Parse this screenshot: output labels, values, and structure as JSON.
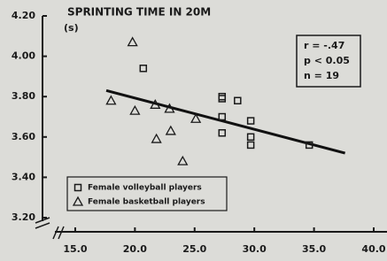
{
  "chart_data": {
    "type": "scatter",
    "title": "SPRINTING TIME IN 20M",
    "y_label": "(s)",
    "annotations": [
      "r = -.47",
      "p < 0.05",
      "n = 19"
    ],
    "xlim": [
      12,
      40
    ],
    "ylim": [
      3.1,
      4.2
    ],
    "xticks": [
      {
        "value": 15,
        "label": "15.0"
      },
      {
        "value": 20,
        "label": "20.0"
      },
      {
        "value": 25,
        "label": "25.0"
      },
      {
        "value": 30,
        "label": "30.0"
      },
      {
        "value": 35,
        "label": "35.0"
      },
      {
        "value": 40,
        "label": "40.0"
      }
    ],
    "yticks": [
      {
        "value": 3.2,
        "label": "3.20"
      },
      {
        "value": 3.4,
        "label": "3.40"
      },
      {
        "value": 3.6,
        "label": "3.60"
      },
      {
        "value": 3.8,
        "label": "3.80"
      },
      {
        "value": 4.0,
        "label": "4.00"
      },
      {
        "value": 4.2,
        "label": "4.20"
      }
    ],
    "series": [
      {
        "name": "Female volleyball players",
        "color": "#1a1a1a",
        "marker": "square",
        "x": [
          20.7,
          27.3,
          27.3,
          28.6,
          27.3,
          27.3,
          29.7,
          29.7,
          29.7,
          34.6
        ],
        "values": [
          3.94,
          3.8,
          3.79,
          3.78,
          3.7,
          3.62,
          3.68,
          3.6,
          3.56,
          3.56
        ]
      },
      {
        "name": "Female basketball players",
        "color": "#1a1a1a",
        "marker": "triangle",
        "x": [
          19.8,
          18.0,
          20.0,
          21.7,
          21.8,
          22.9,
          23.0,
          24.0,
          25.1
        ],
        "values": [
          4.07,
          3.78,
          3.73,
          3.76,
          3.59,
          3.74,
          3.63,
          3.48,
          3.69
        ]
      }
    ],
    "fit_line": {
      "color": "#111111",
      "x": [
        17.6,
        37.6
      ],
      "values": [
        3.83,
        3.52
      ]
    }
  }
}
